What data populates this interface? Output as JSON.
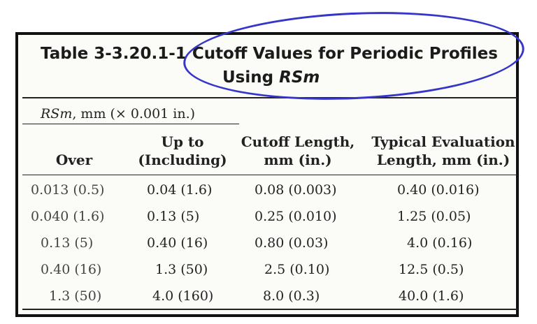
{
  "table": {
    "title_prefix": "Table 3-3.20.1-1",
    "title_main": "Cutoff Values for Periodic Profiles",
    "title_using": "Using ",
    "title_rsm": "RSm",
    "subhead_rsm": "RSm",
    "subhead_rest": ", mm (× 0.001 in.)",
    "headers": {
      "over": "Over",
      "upto_1": "Up to",
      "upto_2": "(Including)",
      "cutoff_1": "Cutoff Length,",
      "cutoff_2": "mm (in.)",
      "eval_1": "Typical Evaluation",
      "eval_2": "Length, mm (in.)"
    },
    "rows": [
      {
        "over": "0.013 (0.5)",
        "upto": "0.04 (1.6)",
        "cutoff": "0.08 (0.003)",
        "eval": "0.40 (0.016)"
      },
      {
        "over": "0.040 (1.6)",
        "upto": "0.13 (5)",
        "cutoff": "0.25 (0.010)",
        "eval": "1.25 (0.05)"
      },
      {
        "over": "0.13 (5)",
        "upto": "0.40 (16)",
        "cutoff": "0.80 (0.03)",
        "eval": "4.0 (0.16)"
      },
      {
        "over": "0.40 (16)",
        "upto": "1.3 (50)",
        "cutoff": "2.5 (0.10)",
        "eval": "12.5 (0.5)"
      },
      {
        "over": "1.3 (50)",
        "upto": "4.0 (160)",
        "cutoff": "8.0 (0.3)",
        "eval": "40.0 (1.6)"
      }
    ]
  },
  "annotation_color": "#3535c8"
}
